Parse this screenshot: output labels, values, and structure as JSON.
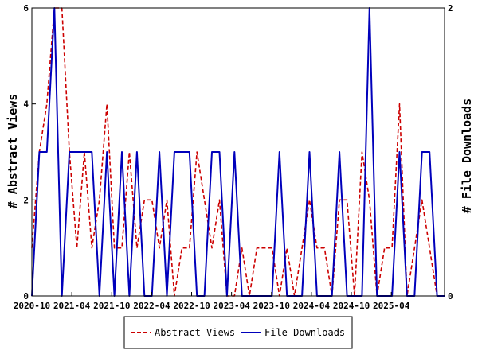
{
  "chart_data": {
    "type": "line",
    "title": "",
    "y_left_label": "# Abstract Views",
    "y_right_label": "# File Downloads",
    "y_left_lim": [
      0,
      6
    ],
    "y_right_lim": [
      0,
      2
    ],
    "y_left_ticks": [
      "0",
      "2",
      "4",
      "6"
    ],
    "y_right_ticks": [
      "0",
      "2"
    ],
    "x_ticks": [
      "2020-10",
      "2021-04",
      "2021-10",
      "2022-04",
      "2022-10",
      "2023-04",
      "2023-10",
      "2024-04",
      "2024-10",
      "2025-04"
    ],
    "x_range_months": [
      "2020-10",
      "2025-12"
    ],
    "legend_position": "bottom",
    "series": [
      {
        "name": "Abstract Views",
        "axis": "left",
        "color": "#cc0000",
        "dash": true,
        "values": [
          1,
          3,
          4,
          6,
          6,
          3,
          1,
          3,
          1,
          2,
          4,
          1,
          1,
          3,
          1,
          2,
          2,
          1,
          2,
          0,
          1,
          1,
          3,
          2,
          1,
          2,
          0,
          0,
          1,
          0,
          1,
          1,
          1,
          0,
          1,
          0,
          1,
          2,
          1,
          1,
          0,
          2,
          2,
          0,
          3,
          2,
          0,
          1,
          1,
          4,
          0,
          1,
          2,
          1,
          0,
          0
        ]
      },
      {
        "name": "File Downloads",
        "axis": "right",
        "color": "#0000bb",
        "dash": false,
        "values": [
          0,
          1,
          1,
          2,
          0,
          1,
          1,
          1,
          1,
          0,
          1,
          0,
          1,
          0,
          1,
          0,
          0,
          1,
          0,
          1,
          1,
          1,
          0,
          0,
          1,
          1,
          0,
          1,
          0,
          0,
          0,
          0,
          0,
          1,
          0,
          0,
          0,
          1,
          0,
          0,
          0,
          1,
          0,
          0,
          0,
          2,
          0,
          0,
          0,
          1,
          0,
          0,
          1,
          1,
          0,
          0
        ]
      }
    ]
  }
}
